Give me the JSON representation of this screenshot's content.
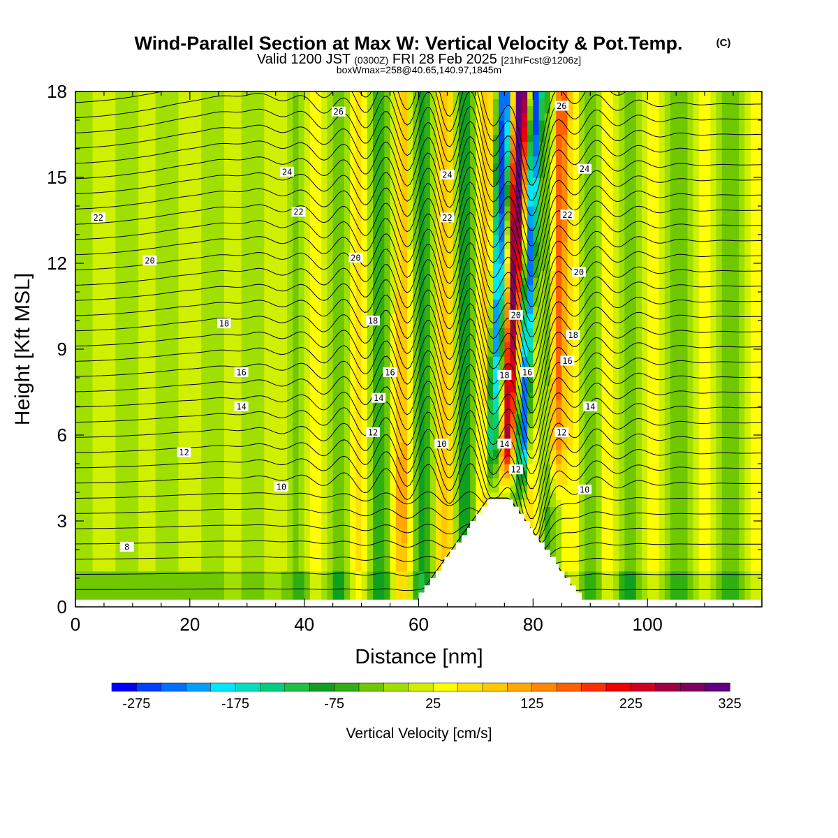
{
  "header": {
    "title": "Wind-Parallel Section at Max W: Vertical Velocity & Pot.Temp.",
    "copyright": "(C)",
    "valid_prefix": "Valid 1200 JST",
    "valid_utc": "(0300Z)",
    "valid_date": "FRI 28 Feb 2025",
    "forecast": "[21hrFcst@1206z]",
    "boxwmax": "boxWmax=258@40.65,140.97,1845m"
  },
  "chart_data": {
    "type": "heatmap",
    "title": "Wind-Parallel Section at Max W: Vertical Velocity & Pot.Temp.",
    "xlabel": "Distance [nm]",
    "ylabel": "Height [Kft MSL]",
    "xlim": [
      0,
      120
    ],
    "ylim": [
      0,
      18
    ],
    "x_ticks": [
      "0",
      "20",
      "40",
      "60",
      "80",
      "100"
    ],
    "y_ticks": [
      "0",
      "3",
      "6",
      "9",
      "12",
      "15",
      "18"
    ],
    "terrain_peak": {
      "x": 74,
      "height_kft": 3.8
    },
    "max_updraft_x": 77,
    "max_downdraft_x": 80,
    "colorbar": {
      "label": "Vertical Velocity [cm/s]",
      "min": -300,
      "max": 350,
      "step": 25,
      "tick_labels": [
        "-275",
        "-175",
        "-75",
        "25",
        "125",
        "225",
        "325"
      ],
      "colors": [
        "#0000ff",
        "#0040ff",
        "#0070ff",
        "#00a0ff",
        "#00e8ff",
        "#00e0c0",
        "#00d080",
        "#20c040",
        "#10a020",
        "#30b010",
        "#70c800",
        "#a0e000",
        "#d0f000",
        "#ffff00",
        "#ffe000",
        "#ffc800",
        "#ffa800",
        "#ff8800",
        "#ff6000",
        "#ff3000",
        "#f00000",
        "#d00020",
        "#a00040",
        "#800060",
        "#600080"
      ]
    },
    "theta_contour_labels": [
      {
        "text": "26",
        "x": 46,
        "y": 17.3
      },
      {
        "text": "26",
        "x": 85,
        "y": 17.5
      },
      {
        "text": "24",
        "x": 37,
        "y": 15.2
      },
      {
        "text": "24",
        "x": 65,
        "y": 15.1
      },
      {
        "text": "24",
        "x": 89,
        "y": 15.3
      },
      {
        "text": "22",
        "x": 4,
        "y": 13.6
      },
      {
        "text": "22",
        "x": 39,
        "y": 13.8
      },
      {
        "text": "22",
        "x": 65,
        "y": 13.6
      },
      {
        "text": "22",
        "x": 86,
        "y": 13.7
      },
      {
        "text": "20",
        "x": 13,
        "y": 12.1
      },
      {
        "text": "20",
        "x": 49,
        "y": 12.2
      },
      {
        "text": "20",
        "x": 77,
        "y": 10.2
      },
      {
        "text": "20",
        "x": 88,
        "y": 11.7
      },
      {
        "text": "18",
        "x": 26,
        "y": 9.9
      },
      {
        "text": "18",
        "x": 52,
        "y": 10.0
      },
      {
        "text": "18",
        "x": 75,
        "y": 8.1
      },
      {
        "text": "18",
        "x": 87,
        "y": 9.5
      },
      {
        "text": "16",
        "x": 29,
        "y": 8.2
      },
      {
        "text": "16",
        "x": 55,
        "y": 8.2
      },
      {
        "text": "16",
        "x": 79,
        "y": 8.2
      },
      {
        "text": "16",
        "x": 86,
        "y": 8.6
      },
      {
        "text": "14",
        "x": 29,
        "y": 7.0
      },
      {
        "text": "14",
        "x": 53,
        "y": 7.3
      },
      {
        "text": "14",
        "x": 75,
        "y": 5.7
      },
      {
        "text": "14",
        "x": 90,
        "y": 7.0
      },
      {
        "text": "12",
        "x": 19,
        "y": 5.4
      },
      {
        "text": "12",
        "x": 52,
        "y": 6.1
      },
      {
        "text": "12",
        "x": 77,
        "y": 4.8
      },
      {
        "text": "12",
        "x": 85,
        "y": 6.1
      },
      {
        "text": "10",
        "x": 36,
        "y": 4.2
      },
      {
        "text": "10",
        "x": 64,
        "y": 5.7
      },
      {
        "text": "10",
        "x": 89,
        "y": 4.1
      },
      {
        "text": "8",
        "x": 9,
        "y": 2.1
      }
    ]
  }
}
